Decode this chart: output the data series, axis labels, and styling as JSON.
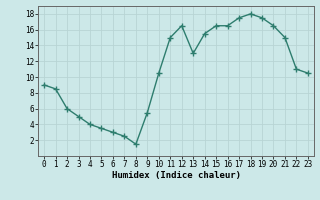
{
  "x": [
    0,
    1,
    2,
    3,
    4,
    5,
    6,
    7,
    8,
    9,
    10,
    11,
    12,
    13,
    14,
    15,
    16,
    17,
    18,
    19,
    20,
    21,
    22,
    23
  ],
  "y": [
    9,
    8.5,
    6,
    5,
    4,
    3.5,
    3,
    2.5,
    1.5,
    5.5,
    10.5,
    15,
    16.5,
    13,
    15.5,
    16.5,
    16.5,
    17.5,
    18,
    17.5,
    16.5,
    15,
    11,
    10.5
  ],
  "line_color": "#2e7d6e",
  "marker": "+",
  "marker_size": 4,
  "line_width": 1.0,
  "background_color": "#cce8e8",
  "grid_color": "#b8d4d4",
  "xlabel": "Humidex (Indice chaleur)",
  "xlim": [
    -0.5,
    23.5
  ],
  "ylim": [
    0,
    19
  ],
  "yticks": [
    2,
    4,
    6,
    8,
    10,
    12,
    14,
    16,
    18
  ],
  "xticks": [
    0,
    1,
    2,
    3,
    4,
    5,
    6,
    7,
    8,
    9,
    10,
    11,
    12,
    13,
    14,
    15,
    16,
    17,
    18,
    19,
    20,
    21,
    22,
    23
  ],
  "xlabel_fontsize": 6.5,
  "tick_fontsize": 5.5
}
